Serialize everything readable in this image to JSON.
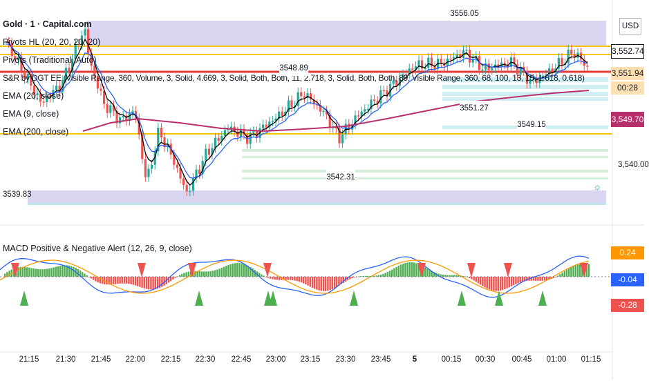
{
  "header": {
    "symbol_title": "Gold · 1 · Capital.com",
    "currency": "USD"
  },
  "indicators": {
    "pivots_hl": "Pivots HL (20, 20, 20, 20)",
    "pivots_traditional": "Pivots (Traditional, Auto)",
    "sr": "S&R by DGT EE (Visible Range, 360, Volume, 3, Solid, 4.669, 3, Solid, Both, Both, 11, 2.718, 3, Solid, Both, Both, 89, Visible Range, 360, 68, 100, 13, 15, 1.618, 0.618)",
    "ema20": "EMA (20, close)",
    "ema9": "EMA (9, close)",
    "ema200": "EMA (200, close)",
    "macd": "MACD Positive & Negative Alert (12, 26, 9, close)"
  },
  "price_labels": {
    "high_label": "3556.05",
    "pivot_label": "3548.89",
    "low_label": "3542.31",
    "label_3551": "3551.27",
    "label_3549": "3549.15",
    "label_3539": "3539.83"
  },
  "price_axis": {
    "tag_top": "3,552.74",
    "tag_last": "3,551.94",
    "tag_countdown": "00:28",
    "tag_ema200": "3,549.70",
    "tick_3540": "3,540.00"
  },
  "macd_axis": {
    "tag_pos": "0.24",
    "tag_macd": "-0.04",
    "tag_neg": "-0.28"
  },
  "time_axis": [
    "21:15",
    "21:30",
    "21:45",
    "22:00",
    "22:15",
    "22:30",
    "22:45",
    "23:00",
    "23:15",
    "23:30",
    "23:45",
    "5",
    "00:15",
    "00:30",
    "00:45",
    "01:00",
    "01:15"
  ],
  "colors": {
    "up": "#26a69a",
    "down": "#ef5350",
    "ema9": "#000000",
    "ema20": "#2962ff",
    "ema200": "#b7306b",
    "macd_line": "#2962ff",
    "signal_line": "#ff9800",
    "hist_pos": "#4caf50",
    "hist_neg": "#ef5350",
    "pivot_gold": "#f7c600",
    "pivot_red": "#e53935",
    "zone_purple": "#d9d4ef",
    "zone_cyan": "#cfeff3"
  }
}
